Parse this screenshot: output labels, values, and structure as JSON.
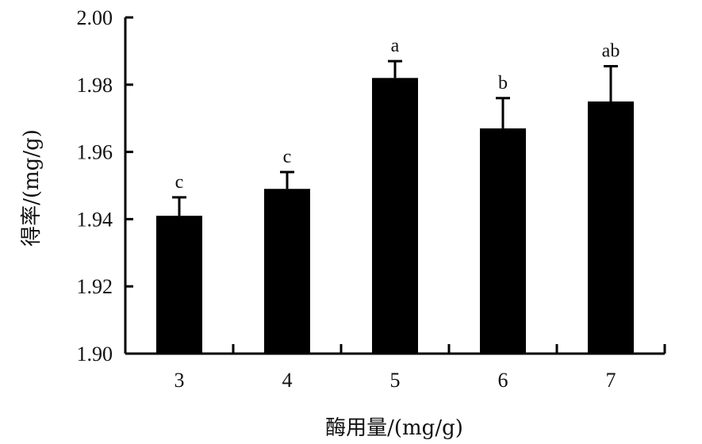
{
  "chart_data": {
    "type": "bar",
    "xlabel": "酶用量/(mg/g)",
    "ylabel": "得率/(mg/g)",
    "categories": [
      "3",
      "4",
      "5",
      "6",
      "7"
    ],
    "values": [
      1.941,
      1.949,
      1.982,
      1.967,
      1.975
    ],
    "errors": [
      0.0055,
      0.005,
      0.005,
      0.009,
      0.0105
    ],
    "significance_labels": [
      "c",
      "c",
      "a",
      "b",
      "ab"
    ],
    "ylim": [
      1.9,
      2.0
    ],
    "yticks": [
      "1.90",
      "1.92",
      "1.94",
      "1.96",
      "1.98",
      "2.00"
    ],
    "bar_color": "#000000",
    "grid": false
  }
}
